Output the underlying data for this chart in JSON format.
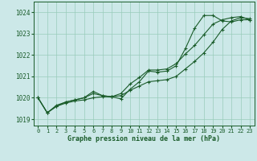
{
  "xlabel": "Graphe pression niveau de la mer (hPa)",
  "bg_color": "#cce8e8",
  "grid_color": "#99ccbb",
  "line_color": "#1a5c2a",
  "xlim": [
    -0.5,
    23.5
  ],
  "ylim": [
    1018.7,
    1024.5
  ],
  "yticks": [
    1019,
    1020,
    1021,
    1022,
    1023,
    1024
  ],
  "xticks": [
    0,
    1,
    2,
    3,
    4,
    5,
    6,
    7,
    8,
    9,
    10,
    11,
    12,
    13,
    14,
    15,
    16,
    17,
    18,
    19,
    20,
    21,
    22,
    23
  ],
  "s1_x": [
    0,
    1,
    2,
    3,
    4,
    5,
    6,
    7,
    8,
    9,
    10,
    11,
    12,
    13,
    14,
    15,
    16,
    17,
    18,
    19,
    20,
    21,
    22,
    23
  ],
  "s1_y": [
    1020.0,
    1019.3,
    1019.6,
    1019.75,
    1019.85,
    1019.9,
    1020.0,
    1020.05,
    1020.05,
    1020.1,
    1020.35,
    1020.55,
    1020.75,
    1020.8,
    1020.85,
    1021.0,
    1021.35,
    1021.7,
    1022.1,
    1022.6,
    1023.2,
    1023.6,
    1023.75,
    1023.7
  ],
  "s2_x": [
    0,
    1,
    2,
    3,
    4,
    5,
    6,
    7,
    8,
    9,
    10,
    11,
    12,
    13,
    14,
    15,
    16,
    17,
    18,
    19,
    20,
    21,
    22,
    23
  ],
  "s2_y": [
    1020.0,
    1019.3,
    1019.6,
    1019.8,
    1019.9,
    1020.0,
    1020.3,
    1020.1,
    1020.05,
    1019.95,
    1020.4,
    1020.75,
    1021.25,
    1021.2,
    1021.25,
    1021.5,
    1022.3,
    1023.25,
    1023.85,
    1023.85,
    1023.6,
    1023.55,
    1023.65,
    1023.65
  ],
  "s3_x": [
    0,
    1,
    2,
    3,
    4,
    5,
    6,
    7,
    8,
    9,
    10,
    11,
    12,
    13,
    14,
    15,
    16,
    17,
    18,
    19,
    20,
    21,
    22,
    23
  ],
  "s3_y": [
    1020.0,
    1019.3,
    1019.65,
    1019.8,
    1019.9,
    1020.0,
    1020.2,
    1020.1,
    1020.05,
    1020.2,
    1020.65,
    1020.95,
    1021.3,
    1021.3,
    1021.35,
    1021.6,
    1022.05,
    1022.45,
    1022.95,
    1023.45,
    1023.65,
    1023.75,
    1023.8,
    1023.65
  ]
}
